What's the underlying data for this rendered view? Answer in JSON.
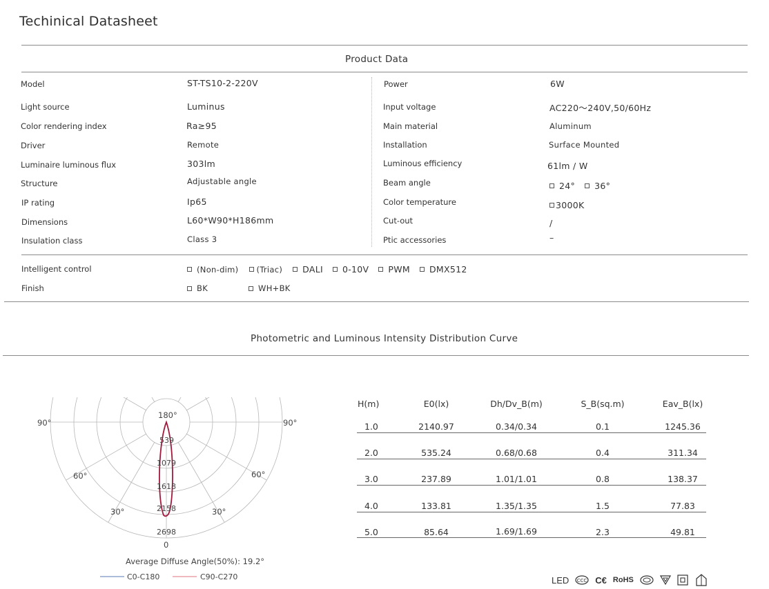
{
  "title": "Techinical Datasheet",
  "product_data": {
    "heading": "Product Data",
    "left": [
      {
        "label": "Model",
        "value": "ST-TS10-2-220V"
      },
      {
        "label": "Light source",
        "value": "Luminus"
      },
      {
        "label": "Color rendering index",
        "value": "Ra≥95"
      },
      {
        "label": "Driver",
        "value": "Remote"
      },
      {
        "label": "Luminaire luminous flux",
        "value": "303lm"
      },
      {
        "label": "Structure",
        "value": "Adjustable angle"
      },
      {
        "label": "IP  rating",
        "value": "Ip65"
      },
      {
        "label": "Dimensions",
        "value": "L60*W90*H186mm"
      },
      {
        "label": "Insulation class",
        "value": "Class 3"
      }
    ],
    "right": [
      {
        "label": "Power",
        "value": "6W"
      },
      {
        "label": "Input voltage",
        "value": "AC220～240V,50/60Hz"
      },
      {
        "label": "Main material",
        "value": "Aluminum"
      },
      {
        "label": "Installation",
        "value": "Surface Mounted"
      },
      {
        "label": "Luminous efficiency",
        "value": "61lm / W"
      },
      {
        "label": "Beam angle",
        "value": "24°  36°"
      },
      {
        "label": "Color temperature",
        "value": "3000K"
      },
      {
        "label": "Cut-out",
        "value": "/"
      },
      {
        "label": "Ptic accessories",
        "value": "–"
      }
    ],
    "beam_options": [
      "24°",
      "36°"
    ]
  },
  "intelligent_control": {
    "label": "Intelligent control",
    "options": [
      "(Non-dim)",
      "(Triac)",
      "DALI",
      "0-10V",
      "PWM",
      "DMX512"
    ]
  },
  "finish": {
    "label": "Finish",
    "options": [
      "BK",
      "WH+BK"
    ]
  },
  "photometric": {
    "heading": "Photometric and Luminous Intensity Distribution Curve",
    "polar": {
      "angle_labels": {
        "top": "180°",
        "left90": "90°",
        "right90": "90°",
        "left60": "60°",
        "right60": "60°",
        "left30": "30°",
        "right30": "30°",
        "bottom": "0"
      },
      "radial_labels": [
        "539",
        "1079",
        "1618",
        "2158",
        "2698"
      ],
      "caption": "Average Diffuse Angle(50%): 19.2°",
      "legend": [
        {
          "name": "C0-C180",
          "color": "#8fa6cf"
        },
        {
          "name": "C90-C270",
          "color": "#e8a4ac"
        }
      ],
      "curve_color": "#a11a3e"
    },
    "table": {
      "headers": [
        "H(m)",
        "E0(lx)",
        "Dh/Dv_B(m)",
        "S_B(sq.m)",
        "Eav_B(lx)"
      ],
      "rows": [
        [
          "1.0",
          "2140.97",
          "0.34/0.34",
          "0.1",
          "1245.36"
        ],
        [
          "2.0",
          "535.24",
          "0.68/0.68",
          "0.4",
          "311.34"
        ],
        [
          "3.0",
          "237.89",
          "1.01/1.01",
          "0.8",
          "138.37"
        ],
        [
          "4.0",
          "133.81",
          "1.35/1.35",
          "1.5",
          "77.83"
        ],
        [
          "5.0",
          "85.64",
          "1.69/1.69",
          "2.3",
          "49.81"
        ]
      ]
    }
  },
  "certifications": [
    "LED",
    "CCC",
    "CE",
    "RoHS",
    "CQC",
    "triangle-mark",
    "double-insulation",
    "ip-mark"
  ],
  "cert_labels": {
    "led": "LED",
    "ce": "C€",
    "rohs": "RoHS"
  }
}
